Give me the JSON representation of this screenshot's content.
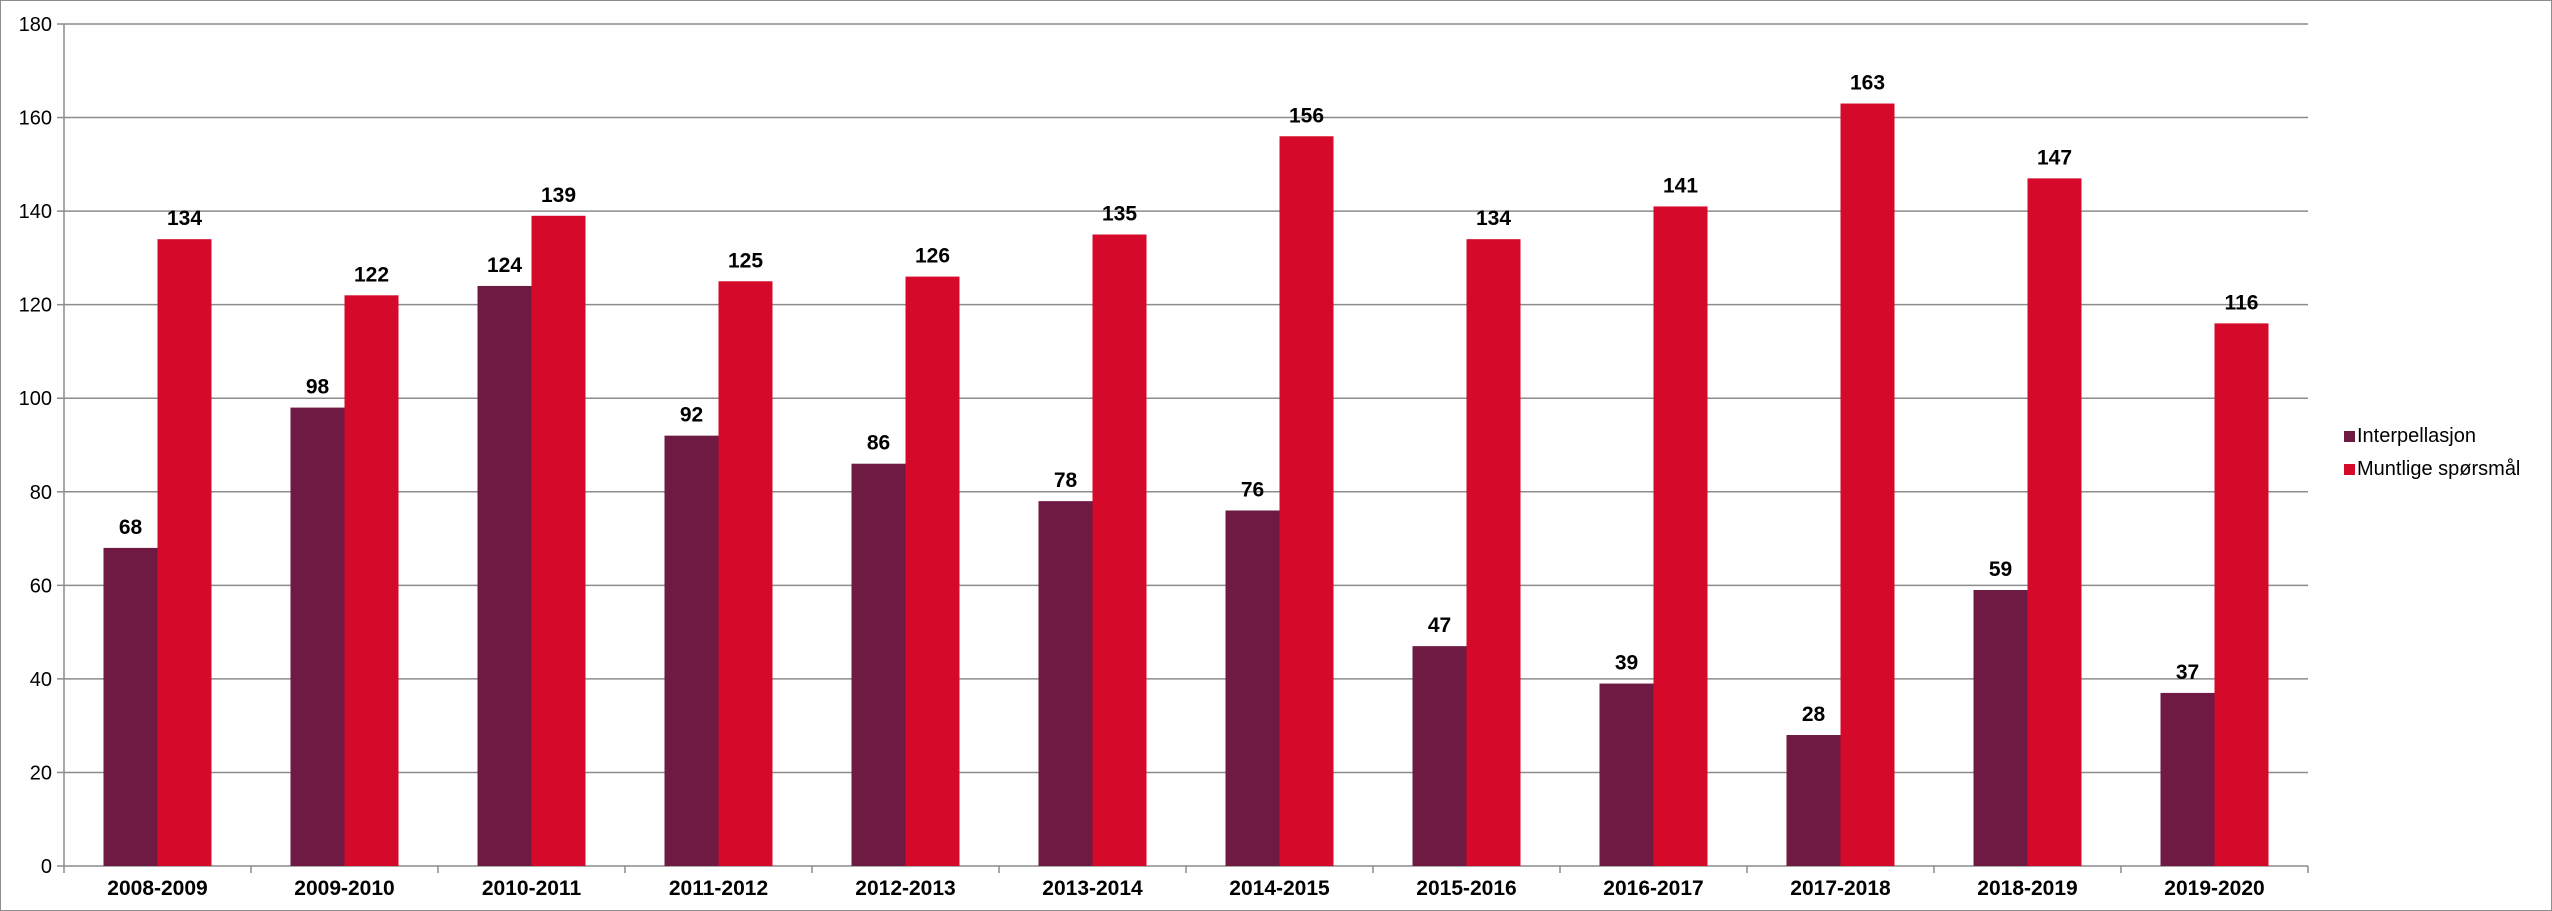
{
  "chart_data": {
    "type": "bar",
    "categories": [
      "2008-2009",
      "2009-2010",
      "2010-2011",
      "2011-2012",
      "2012-2013",
      "2013-2014",
      "2014-2015",
      "2015-2016",
      "2016-2017",
      "2017-2018",
      "2018-2019",
      "2019-2020"
    ],
    "series": [
      {
        "name": "Interpellasjon",
        "color": "#6e1a42",
        "values": [
          68,
          98,
          124,
          92,
          86,
          78,
          76,
          47,
          39,
          28,
          59,
          37
        ]
      },
      {
        "name": "Muntlige spørsmål",
        "color": "#d50a2a",
        "values": [
          134,
          122,
          139,
          125,
          126,
          135,
          156,
          134,
          141,
          163,
          147,
          116
        ]
      }
    ],
    "ylim": [
      0,
      180
    ],
    "yticks": [
      0,
      20,
      40,
      60,
      80,
      100,
      120,
      140,
      160,
      180
    ],
    "grid": true,
    "legend_position": "right",
    "title": "",
    "xlabel": "",
    "ylabel": ""
  }
}
